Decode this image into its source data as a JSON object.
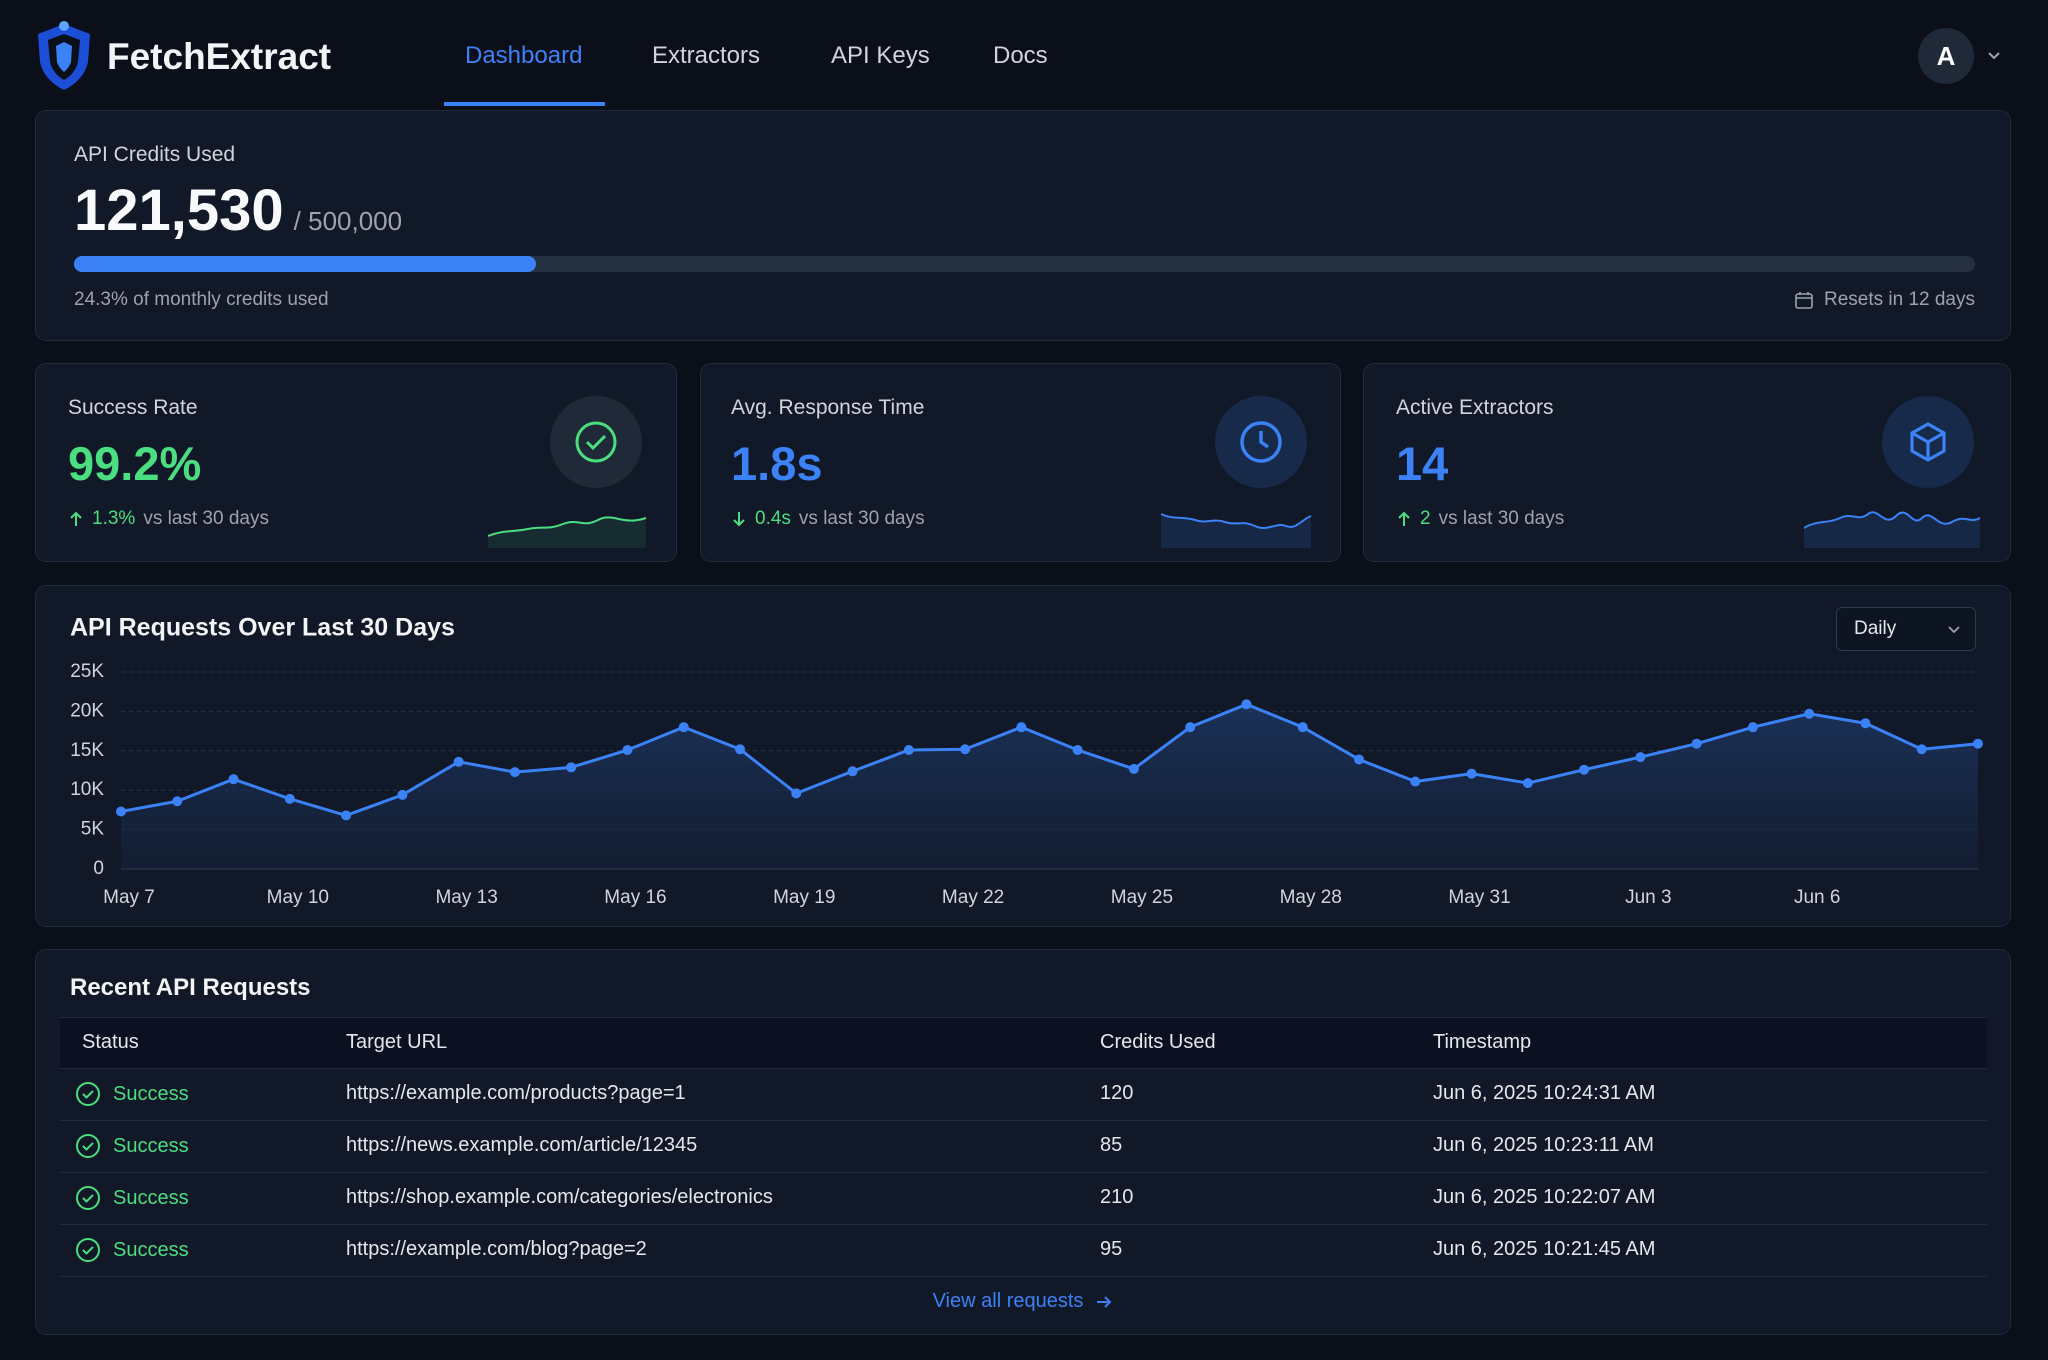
{
  "header": {
    "brand": "FetchExtract",
    "nav": [
      "Dashboard",
      "Extractors",
      "API Keys",
      "Docs"
    ],
    "avatar": "A"
  },
  "credits": {
    "label": "API Credits Used",
    "used": "121,530",
    "total": "/ 500,000",
    "progress": {
      "value": 24.3,
      "label": "24.3% of monthly credits used"
    },
    "reset": "Resets in 12 days"
  },
  "stats": [
    {
      "label": "Success Rate",
      "value": "99.2%",
      "change": "1.3%",
      "suffix": "vs last 30 days"
    },
    {
      "label": "Avg. Response Time",
      "value": "1.8s",
      "change": "0.4s",
      "suffix": "vs last 30 days"
    },
    {
      "label": "Active Extractors",
      "value": "14",
      "change": "2",
      "suffix": "vs last 30 days"
    }
  ],
  "chart_data": {
    "type": "line",
    "title": "API Requests Over Last 30 Days",
    "interval": "Daily",
    "categories": [
      "May 7",
      null,
      null,
      "May 10",
      null,
      null,
      "May 13",
      null,
      null,
      "May 16",
      null,
      null,
      "May 19",
      null,
      null,
      "May 22",
      null,
      null,
      "May 25",
      null,
      null,
      "May 28",
      null,
      null,
      "May 31",
      null,
      null,
      "Jun 3",
      null,
      null,
      "Jun 6",
      null,
      null,
      null
    ],
    "series": [
      {
        "name": "API Requests",
        "color": "#3b82f6",
        "values": [
          7300,
          8600,
          11400,
          8900,
          6800,
          9400,
          13600,
          12300,
          12900,
          15100,
          18000,
          15200,
          9600,
          12400,
          15100,
          15200,
          18000,
          15100,
          12700,
          18000,
          20900,
          18000,
          13900,
          11100,
          12100,
          10900,
          12600,
          14200,
          15900,
          18000,
          19700,
          18500,
          15200,
          15900
        ]
      }
    ],
    "ylim": [
      0,
      25000
    ],
    "yticks": [
      0,
      {
        "value": 5000,
        "label": "5K"
      },
      {
        "value": 10000,
        "label": "10K"
      },
      {
        "value": 15000,
        "label": "15K"
      },
      {
        "value": 20000,
        "label": "20K"
      },
      {
        "value": 25000,
        "label": "25K"
      }
    ],
    "grid": true
  },
  "table": {
    "title": "Recent API Requests",
    "columns": [
      "Status",
      "Target URL",
      "Credits Used",
      "Timestamp"
    ],
    "rows": [
      [
        "Success",
        "https://example.com/products?page=1",
        120,
        "Jun 6, 2025 10:24:31 AM"
      ],
      [
        "Success",
        "https://news.example.com/article/12345",
        85,
        "Jun 6, 2025 10:23:11 AM"
      ],
      [
        "Success",
        "https://shop.example.com/categories/electronics",
        210,
        "Jun 6, 2025 10:22:07 AM"
      ],
      [
        "Success",
        "https://example.com/blog?page=2",
        95,
        "Jun 6, 2025 10:21:45 AM"
      ]
    ],
    "link": "View all requests"
  }
}
